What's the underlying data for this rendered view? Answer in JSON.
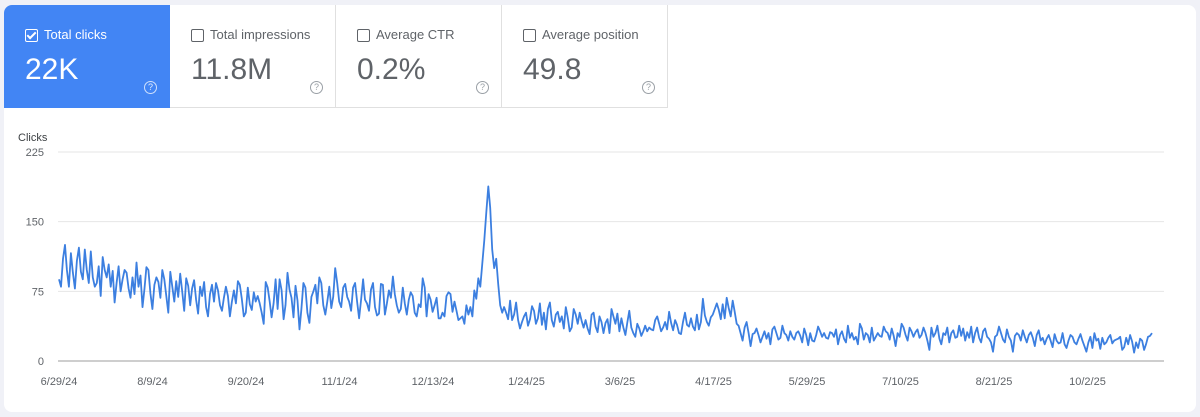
{
  "metrics": [
    {
      "label": "Total clicks",
      "value": "22K",
      "selected": true
    },
    {
      "label": "Total impressions",
      "value": "11.8M",
      "selected": false
    },
    {
      "label": "Average CTR",
      "value": "0.2%",
      "selected": false
    },
    {
      "label": "Average position",
      "value": "49.8",
      "selected": false
    }
  ],
  "help_icon_glyph": "?",
  "icons": {
    "checkbox": "checkbox-icon",
    "help": "help-circle-icon"
  },
  "colors": {
    "accent": "#4285f4",
    "line": "#3c7fe0",
    "grid": "#e6e6e6"
  },
  "chart_data": {
    "type": "line",
    "title": "",
    "ylabel": "Clicks",
    "xlabel": "",
    "ylim": [
      0,
      225
    ],
    "yticks": [
      0,
      75,
      150,
      225
    ],
    "grid": true,
    "x_tick_labels": [
      "6/29/24",
      "8/9/24",
      "9/20/24",
      "11/1/24",
      "12/13/24",
      "1/24/25",
      "3/6/25",
      "4/17/25",
      "5/29/25",
      "7/10/25",
      "8/21/25",
      "10/2/25"
    ],
    "x_start": "6/29/24",
    "x_end": "10/26/25",
    "series": [
      {
        "name": "",
        "values": [
          88,
          80,
          110,
          125,
          98,
          80,
          116,
          95,
          78,
          108,
          122,
          96,
          88,
          120,
          98,
          84,
          118,
          90,
          80,
          84,
          102,
          70,
          112,
          98,
          90,
          104,
          80,
          97,
          63,
          84,
          102,
          75,
          88,
          98,
          95,
          78,
          68,
          90,
          72,
          106,
          80,
          92,
          58,
          78,
          101,
          98,
          73,
          56,
          82,
          90,
          85,
          68,
          98,
          88,
          70,
          52,
          96,
          80,
          64,
          86,
          69,
          94,
          75,
          54,
          89,
          81,
          60,
          78,
          87,
          66,
          51,
          80,
          70,
          85,
          58,
          48,
          72,
          82,
          64,
          84,
          76,
          60,
          54,
          68,
          80,
          70,
          48,
          64,
          76,
          62,
          86,
          82,
          67,
          48,
          52,
          79,
          61,
          55,
          74,
          64,
          70,
          62,
          52,
          40,
          85,
          79,
          64,
          47,
          62,
          88,
          56,
          88,
          76,
          45,
          60,
          95,
          77,
          68,
          47,
          81,
          65,
          34,
          56,
          84,
          79,
          52,
          41,
          69,
          75,
          82,
          62,
          90,
          84,
          60,
          50,
          64,
          80,
          57,
          69,
          100,
          84,
          64,
          58,
          79,
          83,
          69,
          64,
          54,
          79,
          84,
          64,
          46,
          66,
          88,
          66,
          62,
          54,
          77,
          84,
          58,
          49,
          51,
          83,
          82,
          50,
          62,
          76,
          68,
          91,
          72,
          60,
          52,
          56,
          79,
          62,
          50,
          66,
          74,
          70,
          52,
          48,
          61,
          58,
          89,
          79,
          48,
          72,
          66,
          53,
          60,
          68,
          46,
          46,
          52,
          48,
          70,
          74,
          72,
          53,
          64,
          54,
          44,
          46,
          48,
          40,
          60,
          50,
          58,
          48,
          76,
          67,
          89,
          80,
          105,
          130,
          160,
          188,
          165,
          120,
          100,
          110,
          83,
          60,
          52,
          58,
          52,
          45,
          65,
          44,
          50,
          63,
          44,
          35,
          42,
          48,
          52,
          38,
          45,
          59,
          54,
          40,
          46,
          62,
          39,
          52,
          34,
          56,
          63,
          44,
          37,
          50,
          53,
          42,
          48,
          35,
          58,
          47,
          32,
          36,
          56,
          50,
          40,
          52,
          43,
          36,
          44,
          35,
          29,
          50,
          52,
          37,
          31,
          48,
          42,
          30,
          41,
          45,
          30,
          56,
          48,
          40,
          51,
          32,
          46,
          36,
          28,
          42,
          54,
          36,
          30,
          26,
          40,
          35,
          27,
          32,
          38,
          32,
          36,
          34,
          33,
          44,
          48,
          40,
          32,
          36,
          42,
          34,
          53,
          41,
          33,
          44,
          39,
          30,
          29,
          42,
          52,
          39,
          37,
          46,
          37,
          33,
          50,
          34,
          42,
          67,
          49,
          42,
          38,
          47,
          50,
          56,
          62,
          55,
          45,
          61,
          46,
          68,
          57,
          48,
          65,
          53,
          40,
          38,
          30,
          22,
          36,
          42,
          30,
          16,
          29,
          30,
          35,
          28,
          20,
          26,
          32,
          24,
          30,
          18,
          34,
          37,
          30,
          23,
          25,
          38,
          30,
          28,
          22,
          32,
          26,
          23,
          30,
          32,
          27,
          20,
          35,
          28,
          17,
          30,
          22,
          21,
          28,
          37,
          32,
          26,
          30,
          25,
          24,
          31,
          30,
          26,
          34,
          18,
          28,
          32,
          24,
          20,
          38,
          25,
          30,
          23,
          26,
          18,
          40,
          35,
          23,
          30,
          28,
          20,
          36,
          22,
          26,
          30,
          27,
          26,
          37,
          32,
          30,
          23,
          35,
          27,
          16,
          30,
          26,
          40,
          36,
          28,
          22,
          36,
          32,
          26,
          31,
          34,
          25,
          28,
          36,
          30,
          22,
          12,
          36,
          26,
          30,
          38,
          24,
          18,
          30,
          28,
          36,
          20,
          30,
          33,
          25,
          26,
          38,
          27,
          35,
          22,
          31,
          25,
          37,
          20,
          30,
          36,
          25,
          20,
          32,
          35,
          26,
          24,
          20,
          10,
          26,
          28,
          37,
          30,
          23,
          20,
          34,
          26,
          22,
          10,
          27,
          30,
          28,
          22,
          33,
          26,
          20,
          28,
          31,
          25,
          16,
          28,
          33,
          22,
          25,
          18,
          24,
          28,
          22,
          15,
          29,
          22,
          19,
          20,
          30,
          18,
          14,
          22,
          28,
          26,
          20,
          18,
          24,
          29,
          22,
          16,
          10,
          20,
          26,
          14,
          30,
          22,
          24,
          13,
          25,
          18,
          20,
          25,
          28,
          19,
          22,
          23,
          24,
          26,
          12,
          15,
          25,
          18,
          28,
          21,
          9,
          20,
          14,
          24,
          22,
          12,
          18,
          26,
          27,
          30
        ]
      }
    ]
  }
}
